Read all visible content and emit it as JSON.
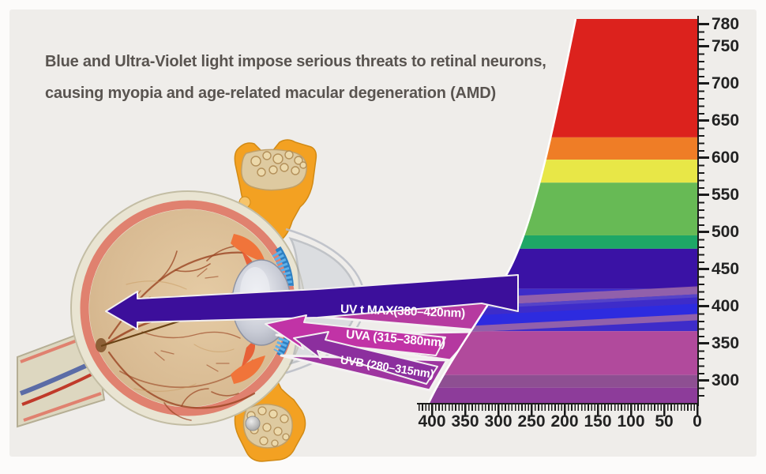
{
  "page": {
    "background": "#fcfbfa",
    "panel_background": "#efedea"
  },
  "title": {
    "line1": "Blue and Ultra-Violet light impose serious threats to retinal neurons,",
    "line2": "causing myopia and age-related macular degeneration (AMD)",
    "color": "#595450"
  },
  "beams": {
    "uv_t_max": "UV t MAX(380–420nm)",
    "uva": "UVA (315–380nm)",
    "uvb": "UVB (280–315nm)"
  },
  "chart_data": {
    "type": "spectrum",
    "description": "Visible-to-UV light spectrum wedge with wavelength ruler; UV bands shown entering an eye cross-section",
    "right_axis": {
      "labels": [
        "780",
        "750",
        "700",
        "650",
        "600",
        "550",
        "500",
        "450",
        "400",
        "350",
        "300"
      ],
      "range_nm": [
        780,
        268
      ]
    },
    "bottom_axis": {
      "labels": [
        "400",
        "350",
        "300",
        "250",
        "200",
        "150",
        "100",
        "50",
        "0"
      ]
    },
    "spectrum_bands": [
      {
        "name": "red",
        "from_nm": 788,
        "to_nm": 628,
        "color": "#dc221d"
      },
      {
        "name": "orange",
        "from_nm": 628,
        "to_nm": 598,
        "color": "#ef7d26"
      },
      {
        "name": "yellow",
        "from_nm": 598,
        "to_nm": 567,
        "color": "#e8e747"
      },
      {
        "name": "green",
        "from_nm": 567,
        "to_nm": 496,
        "color": "#67ba55"
      },
      {
        "name": "teal-green",
        "from_nm": 496,
        "to_nm": 478,
        "color": "#1ea766"
      },
      {
        "name": "indigo",
        "from_nm": 478,
        "to_nm": 424,
        "color": "#3a12a5"
      },
      {
        "name": "violet-blue-uv",
        "from_nm": 424,
        "to_nm": 367,
        "color": "#3e2cc9"
      },
      {
        "name": "uva-magenta",
        "from_nm": 367,
        "to_nm": 308,
        "color": "#b14a9c"
      },
      {
        "name": "uv-muted-purple",
        "from_nm": 308,
        "to_nm": 291,
        "color": "#8e4f92"
      },
      {
        "name": "uv-purple",
        "from_nm": 291,
        "to_nm": 266,
        "color": "#8d3c9a"
      }
    ],
    "accent_colors": {
      "uv_beam_arrow": "#3c0f9b",
      "uva_arrow": "#c133a6",
      "uvb_arrow": "#8c2f9e",
      "wedge_magenta": "#b63aa0",
      "ruler": "#1b1b1b"
    }
  }
}
